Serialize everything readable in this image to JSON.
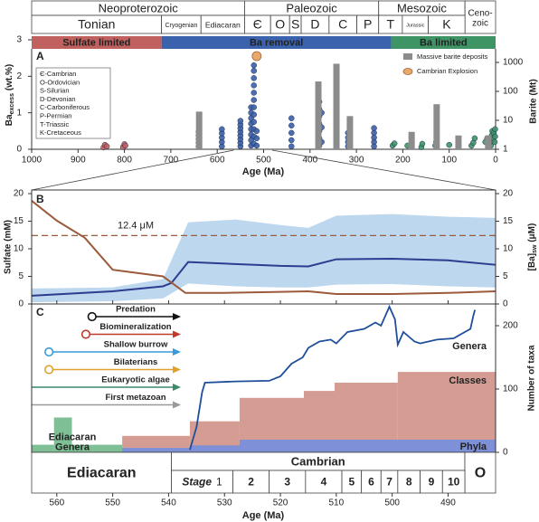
{
  "chart_data": [
    {
      "type": "scatter",
      "label": "A",
      "xlabel": "Age (Ma)",
      "ylabel": "Ba",
      "ylabel_sub": "excess",
      "ylabel_unit": " (wt.%)",
      "y2label": "Barite (Mt)",
      "xlim": [
        1000,
        0
      ],
      "xticks": [
        1000,
        900,
        800,
        700,
        600,
        500,
        400,
        300,
        200,
        100,
        0
      ],
      "ylim": [
        0,
        3
      ],
      "yticks": [
        0,
        1,
        2,
        3
      ],
      "y2lim": [
        1,
        1000
      ],
      "y2ticks": [
        1,
        10,
        100,
        1000
      ],
      "y2scale": "log",
      "timescale": {
        "eras": [
          {
            "name": "Neoproterozoic",
            "start": 1000,
            "end": 541
          },
          {
            "name": "Paleozoic",
            "start": 541,
            "end": 252
          },
          {
            "name": "Mesozoic",
            "start": 252,
            "end": 66
          },
          {
            "name": "Ceno-\nzoic",
            "start": 66,
            "end": 0
          }
        ],
        "periods": [
          {
            "name": "Tonian",
            "start": 1000,
            "end": 720
          },
          {
            "name": "Cryogenian",
            "start": 720,
            "end": 635
          },
          {
            "name": "Ediacaran",
            "start": 635,
            "end": 541
          },
          {
            "name": "Є",
            "start": 541,
            "end": 485
          },
          {
            "name": "O",
            "start": 485,
            "end": 444
          },
          {
            "name": "S",
            "start": 444,
            "end": 419
          },
          {
            "name": "D",
            "start": 419,
            "end": 359
          },
          {
            "name": "C",
            "start": 359,
            "end": 299
          },
          {
            "name": "P",
            "start": 299,
            "end": 252
          },
          {
            "name": "T",
            "start": 252,
            "end": 201
          },
          {
            "name": "Jurassic",
            "start": 201,
            "end": 145
          },
          {
            "name": "K",
            "start": 145,
            "end": 66
          }
        ]
      },
      "phases": [
        {
          "name": "Sulfate limited",
          "color": "#c0605f",
          "start": 1000,
          "end": 720
        },
        {
          "name": "Ba removal",
          "color": "#3a62ad",
          "start": 720,
          "end": 225
        },
        {
          "name": "Ba limited",
          "color": "#3f9466",
          "start": 225,
          "end": 0
        }
      ],
      "abbreviations": [
        "Є-Cambrian",
        "O-Ordovician",
        "S-Silurian",
        "D-Devonian",
        "C-Carboniferous",
        "P-Permian",
        "T-Triassic",
        "K-Cretaceous"
      ],
      "series": [
        {
          "type": "scatter",
          "color": "#c0605f",
          "x": [
            845,
            842,
            838,
            803,
            800,
            798
          ],
          "values": [
            0.05,
            0.12,
            0.08,
            0.06,
            0.14,
            0.1
          ]
        },
        {
          "type": "scatter",
          "color": "#3a5fa8",
          "x": [
            640,
            640,
            640,
            640,
            640,
            590,
            590,
            590,
            590,
            590,
            550,
            550,
            550,
            550,
            550,
            550,
            550,
            550,
            527,
            527,
            527,
            527,
            527,
            527,
            527,
            527,
            521,
            521,
            521,
            521,
            521,
            521,
            521,
            521,
            521,
            521,
            521,
            521,
            515,
            515,
            515,
            440,
            440,
            440,
            440,
            440,
            380,
            380,
            380,
            380,
            380,
            380,
            380,
            375,
            375,
            375,
            318,
            318,
            318,
            318,
            262,
            262,
            262,
            262,
            262
          ],
          "values": [
            0.08,
            0.18,
            0.28,
            0.38,
            0.48,
            0.08,
            0.2,
            0.32,
            0.44,
            0.55,
            0.08,
            0.18,
            0.28,
            0.38,
            0.48,
            0.58,
            0.68,
            0.78,
            0.1,
            0.25,
            0.4,
            0.55,
            0.7,
            0.85,
            1.0,
            1.15,
            0.15,
            0.35,
            0.55,
            0.75,
            0.95,
            1.15,
            1.35,
            1.55,
            1.75,
            1.95,
            2.15,
            2.3,
            0.1,
            0.3,
            0.5,
            0.08,
            0.25,
            0.45,
            0.65,
            0.85,
            0.1,
            0.3,
            0.5,
            0.7,
            0.9,
            1.1,
            1.3,
            0.2,
            0.6,
            1.0,
            0.08,
            0.2,
            0.32,
            0.45,
            0.08,
            0.2,
            0.32,
            0.45,
            0.58
          ]
        },
        {
          "type": "scatter",
          "color": "#3f9466",
          "x": [
            222,
            218,
            190,
            160,
            158,
            130,
            128,
            100,
            80,
            52,
            48,
            45,
            22,
            18,
            10,
            9,
            8,
            7,
            5,
            4,
            2,
            1,
            1
          ],
          "values": [
            0.1,
            0.16,
            0.1,
            0.06,
            0.15,
            0.1,
            0.2,
            0.12,
            0.2,
            0.1,
            0.18,
            0.3,
            0.2,
            0.3,
            0.1,
            0.22,
            0.38,
            0.5,
            0.3,
            0.45,
            0.2,
            0.35,
            0.55
          ]
        },
        {
          "type": "bar",
          "name": "Massive barite deposits",
          "color": "#8c8c8c",
          "axis": "y2",
          "x": [
            639,
            382,
            343,
            314,
            181,
            127,
            80,
            16
          ],
          "values": [
            20,
            220,
            900,
            14,
            4,
            36,
            3,
            3
          ]
        }
      ],
      "markers": [
        {
          "name": "Cambrian Explosion",
          "color": "#e9a96a",
          "x": 515
        }
      ]
    },
    {
      "type": "line",
      "label": "B",
      "ylabel": "Sulfate (mM)",
      "y2label": "[Ba]",
      "y2label_sub": "sw",
      "y2label_unit": " (μM)",
      "xlabel": "Age (Ma)",
      "xlim": [
        564.5,
        481.5
      ],
      "xticks": [
        560,
        550,
        540,
        530,
        520,
        510,
        500,
        490
      ],
      "ylim": [
        0,
        20
      ],
      "yticks": [
        0,
        5,
        10,
        15,
        20
      ],
      "y2lim": [
        0,
        20
      ],
      "y2ticks": [
        0,
        5,
        10,
        15,
        20
      ],
      "band": {
        "color": "#bcd7ee",
        "x": [
          564.5,
          550,
          541,
          536.5,
          528,
          520,
          515,
          510,
          500,
          490,
          481.5
        ],
        "upper": [
          2.8,
          3,
          4.5,
          14.8,
          15.3,
          14.3,
          13.8,
          16,
          16.3,
          15.8,
          15.6
        ],
        "lower": [
          0.3,
          0.5,
          1,
          3.7,
          3.2,
          3,
          3,
          3.5,
          3.6,
          3.2,
          3
        ]
      },
      "series": [
        {
          "color": "#2e3b8f",
          "x": [
            564.5,
            550,
            541,
            539.5,
            536.5,
            520,
            515,
            510,
            500,
            490,
            481.5
          ],
          "values": [
            1.5,
            2.3,
            3.2,
            3.8,
            7.6,
            6.9,
            6.8,
            8.1,
            8.2,
            7.9,
            7.1
          ]
        },
        {
          "color": "#9b5a3c",
          "axis": "y2",
          "x": [
            564.5,
            560,
            555,
            550,
            541,
            537,
            530,
            520,
            515,
            510,
            500,
            490,
            481.5
          ],
          "values": [
            18.7,
            15.1,
            12,
            6.2,
            5,
            2,
            2,
            2.2,
            2.3,
            1.8,
            1.8,
            2,
            2.3
          ]
        }
      ],
      "reference": {
        "value": 12.4,
        "label": "12.4 μM",
        "color": "#9b5a3c"
      }
    },
    {
      "type": "area",
      "label": "C",
      "y2label": "Number of taxa",
      "xlim": [
        564.5,
        481.5
      ],
      "y2lim": [
        0,
        230
      ],
      "y2ticks": [
        0,
        100,
        200
      ],
      "series": [
        {
          "type": "step",
          "name": "Ediacaran Genera",
          "color": "#7fbf95",
          "bins": [
            564.5,
            560.5,
            557.3,
            548.3
          ],
          "values": [
            12,
            55,
            12
          ]
        },
        {
          "type": "step",
          "name": "Classes",
          "color": "#d49c92",
          "bins": [
            548.3,
            536.2,
            527.3,
            515.8,
            510.3,
            499,
            481.5
          ],
          "values": [
            26,
            49,
            86,
            97,
            110,
            127
          ]
        },
        {
          "type": "step",
          "name": "Phyla",
          "color": "#7d90d8",
          "bins": [
            548.3,
            536.2,
            527.3,
            481.5
          ],
          "values": [
            7,
            11,
            20
          ]
        },
        {
          "type": "line",
          "name": "Genera",
          "color": "#1f4f9c",
          "x": [
            536.2,
            535,
            534,
            533.5,
            528,
            522,
            520,
            518,
            516,
            515,
            513,
            511,
            510,
            508,
            505,
            503,
            502,
            500.5,
            499.5,
            499,
            498,
            496,
            495,
            492,
            489,
            486,
            485.5,
            485.2
          ],
          "values": [
            4,
            40,
            95,
            110,
            112,
            113,
            120,
            140,
            150,
            165,
            175,
            178,
            172,
            190,
            195,
            205,
            200,
            230,
            210,
            170,
            190,
            175,
            172,
            178,
            180,
            195,
            215,
            225
          ]
        }
      ],
      "events": [
        {
          "name": "Predation",
          "color": "#111111",
          "start": 553.7
        },
        {
          "name": "Biomineralization",
          "color": "#c0392b",
          "start": 554.8
        },
        {
          "name": "Shallow burrow",
          "color": "#3a9ad9",
          "start": 561.4
        },
        {
          "name": "Bilaterians",
          "color": "#e0a030",
          "start": 561.4
        },
        {
          "name": "Eukaryotic algae",
          "color": "#3a8a6a"
        },
        {
          "name": "First metazoan",
          "color": "#9a9a9a"
        }
      ],
      "timescale": {
        "eras": [
          {
            "name": "Ediacaran",
            "start": 564.5,
            "end": 539.5
          },
          {
            "name": "Cambrian",
            "start": 539.5,
            "end": 487
          },
          {
            "name": "O",
            "start": 487,
            "end": 481.5
          }
        ],
        "stage_prefix": "Stage",
        "stages": [
          {
            "name": "1",
            "start": 539.5,
            "end": 528.5
          },
          {
            "name": "2",
            "start": 528.5,
            "end": 522
          },
          {
            "name": "3",
            "start": 522,
            "end": 515.5
          },
          {
            "name": "4",
            "start": 515.5,
            "end": 509
          },
          {
            "name": "5",
            "start": 509,
            "end": 505.5
          },
          {
            "name": "6",
            "start": 505.5,
            "end": 502
          },
          {
            "name": "7",
            "start": 502,
            "end": 499
          },
          {
            "name": "8",
            "start": 499,
            "end": 495
          },
          {
            "name": "9",
            "start": 495,
            "end": 491
          },
          {
            "name": "10",
            "start": 491,
            "end": 487
          }
        ]
      }
    }
  ]
}
